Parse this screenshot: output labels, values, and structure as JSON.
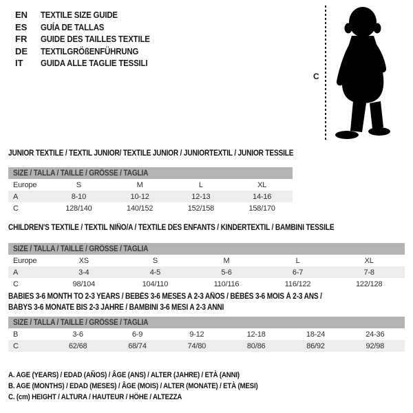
{
  "colors": {
    "background": "#ffffff",
    "size_band": "#b5b3b1",
    "alt_row": "#eeedec",
    "text": "#1a1a1a"
  },
  "languages": [
    {
      "code": "EN",
      "label": "TEXTILE SIZE GUIDE"
    },
    {
      "code": "ES",
      "label": "GUÍA DE TALLAS"
    },
    {
      "code": "FR",
      "label": "GUIDE DES TAILLES TEXTILE"
    },
    {
      "code": "DE",
      "label": "TEXTILGRÖßENFÜHRUNG"
    },
    {
      "code": "IT",
      "label": "GUIDA ALLE TAGLIE TESSILI"
    }
  ],
  "figure": {
    "icon": "baby-silhouette",
    "measure_label": "C"
  },
  "tables": [
    {
      "title_lines": [
        "JUNIOR TEXTILE / TEXTIL JUNIOR/ TEXTILE JUNIOR / JUNIORTEXTIL / JUNIOR TESSILE"
      ],
      "size_header": "SIZE / TALLA / TAILLE / GRÖSSE / TAGLIA",
      "rows": [
        [
          "Europe",
          "S",
          "M",
          "L",
          "XL"
        ],
        [
          "A",
          "8-10",
          "10-12",
          "12-13",
          "14-16"
        ],
        [
          "C",
          "128/140",
          "140/152",
          "152/158",
          "158/170"
        ]
      ]
    },
    {
      "title_lines": [
        "CHILDREN'S TEXTILE / TEXTIL NIÑO/A / TEXTILE DES ENFANTS / KINDERTEXTIL / BAMBINI TESSILE"
      ],
      "size_header": "SIZE / TALLA / TAILLE / GRÖSSE / TAGLIA",
      "rows": [
        [
          "Europe",
          "XS",
          "S",
          "M",
          "L",
          "XL"
        ],
        [
          "A",
          "3-4",
          "4-5",
          "5-6",
          "6-7",
          "7-8"
        ],
        [
          "C",
          "98/104",
          "104/110",
          "110/116",
          "116/122",
          "122/128"
        ]
      ]
    },
    {
      "title_lines": [
        "BABIES 3-6 MONTH TO 2-3 YEARS / BEBÉS 3-6 MESES A 2-3 AÑOS / BÉBÉS 3-6 MOIS À 2-3 ANS /",
        "BABYS 3-6 MONATE BIS 2-3 JAHRE / BAMBINI 3-6 MESI A 2-3 ANNI"
      ],
      "size_header": "SIZE / TALLA / TAILLE / GRÖSSE / TAGLIA",
      "rows": [
        [
          "B",
          "3-6",
          "6-9",
          "9-12",
          "12-18",
          "18-24",
          "24-36"
        ],
        [
          "C",
          "62/68",
          "68/74",
          "74/80",
          "80/86",
          "86/92",
          "92/98"
        ]
      ]
    }
  ],
  "notes": [
    "A. AGE (YEARS) / EDAD (AÑOS) / ÂGE (ANS) / ALTER (JAHRE) / ETÀ (ANNI)",
    "B. AGE (MONTHS) / EDAD (MESES) / ÂGE (MOIS) / ALTER (MONATE) / ETÀ (MESI)",
    "C. (cm) HEIGHT / ALTURA / HAUTEUR / HÖHE / ALTEZZA"
  ]
}
